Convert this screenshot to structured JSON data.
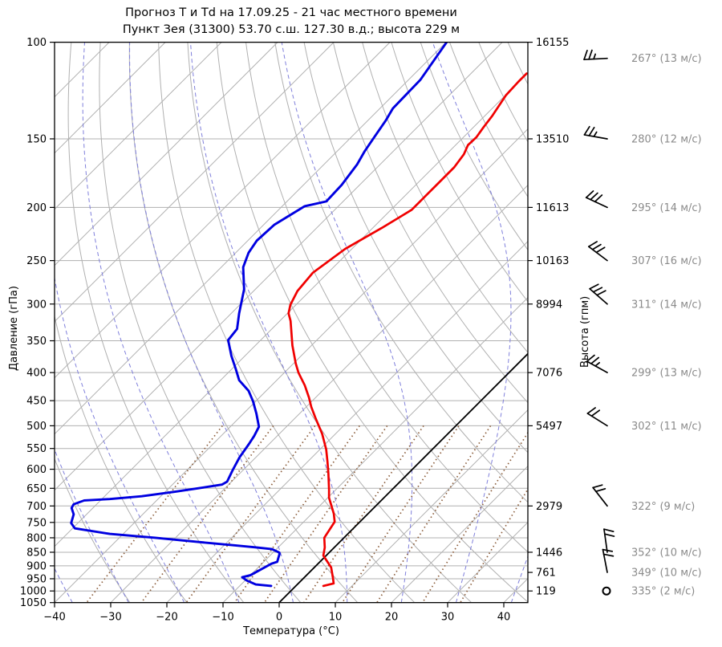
{
  "title": {
    "line1": "Прогноз Т и Td на 17.09.25 - 21 час местного времени",
    "line2": "Пункт Зея (31300) 53.70 с.ш. 127.30 в.д.; высота 229 м"
  },
  "chart_data": {
    "type": "skewt",
    "xlabel": "Температура (°C)",
    "ylabel_left": "Давление (гПа)",
    "ylabel_right": "Высота (гпм)",
    "xlim": [
      -40,
      44.3
    ],
    "plim": [
      100,
      1050
    ],
    "skew_deg": 45,
    "pressure_ticks": [
      100,
      150,
      200,
      250,
      300,
      350,
      400,
      450,
      500,
      550,
      600,
      650,
      700,
      750,
      800,
      850,
      900,
      950,
      1000,
      1050
    ],
    "temp_ticks": [
      -40,
      -30,
      -20,
      -10,
      0,
      10,
      20,
      30,
      40
    ],
    "height_labels": [
      {
        "p": 100,
        "h": "16155"
      },
      {
        "p": 150,
        "h": "13510"
      },
      {
        "p": 200,
        "h": "11613"
      },
      {
        "p": 250,
        "h": "10163"
      },
      {
        "p": 300,
        "h": "8994"
      },
      {
        "p": 400,
        "h": "7076"
      },
      {
        "p": 500,
        "h": "5497"
      },
      {
        "p": 700,
        "h": "2979"
      },
      {
        "p": 850,
        "h": "1446"
      },
      {
        "p": 925,
        "h": "761"
      },
      {
        "p": 1000,
        "h": "119"
      }
    ],
    "temperature_profile": [
      [
        114,
        -50.1
      ],
      [
        118,
        -50.1
      ],
      [
        125,
        -49.9
      ],
      [
        136,
        -48.7
      ],
      [
        143,
        -48.2
      ],
      [
        149,
        -47.7
      ],
      [
        154,
        -47.8
      ],
      [
        160,
        -46.9
      ],
      [
        169,
        -46.3
      ],
      [
        181,
        -46.3
      ],
      [
        191,
        -46.3
      ],
      [
        202,
        -46.3
      ],
      [
        218,
        -48.4
      ],
      [
        238,
        -51.2
      ],
      [
        263,
        -52.7
      ],
      [
        284,
        -52.2
      ],
      [
        301,
        -51.0
      ],
      [
        312,
        -49.8
      ],
      [
        322,
        -48.1
      ],
      [
        357,
        -43.4
      ],
      [
        385,
        -39.6
      ],
      [
        400,
        -37.5
      ],
      [
        422,
        -34.1
      ],
      [
        444,
        -31.2
      ],
      [
        462,
        -29.1
      ],
      [
        483,
        -26.5
      ],
      [
        517,
        -22.4
      ],
      [
        552,
        -18.9
      ],
      [
        581,
        -16.5
      ],
      [
        611,
        -14.2
      ],
      [
        654,
        -11.2
      ],
      [
        676,
        -9.8
      ],
      [
        723,
        -6.1
      ],
      [
        748,
        -4.5
      ],
      [
        800,
        -3.5
      ],
      [
        833,
        -1.7
      ],
      [
        862,
        -0.5
      ],
      [
        906,
        3.0
      ],
      [
        947,
        5.2
      ],
      [
        969,
        6.3
      ],
      [
        979,
        4.9
      ]
    ],
    "dewpoint_profile": [
      [
        100,
        -69.9
      ],
      [
        117,
        -67.9
      ],
      [
        132,
        -67.7
      ],
      [
        139,
        -66.8
      ],
      [
        150,
        -65.8
      ],
      [
        158,
        -65.1
      ],
      [
        167,
        -64.1
      ],
      [
        182,
        -63.2
      ],
      [
        195,
        -63.0
      ],
      [
        199,
        -66.0
      ],
      [
        215,
        -68.1
      ],
      [
        230,
        -68.4
      ],
      [
        242,
        -67.7
      ],
      [
        257,
        -66.1
      ],
      [
        282,
        -62.0
      ],
      [
        312,
        -58.6
      ],
      [
        333,
        -56.2
      ],
      [
        349,
        -55.8
      ],
      [
        373,
        -52.4
      ],
      [
        394,
        -49.3
      ],
      [
        413,
        -46.7
      ],
      [
        432,
        -43.1
      ],
      [
        451,
        -40.5
      ],
      [
        475,
        -37.7
      ],
      [
        502,
        -34.9
      ],
      [
        522,
        -34.1
      ],
      [
        540,
        -33.6
      ],
      [
        571,
        -32.9
      ],
      [
        601,
        -31.9
      ],
      [
        632,
        -30.8
      ],
      [
        640,
        -31.2
      ],
      [
        650,
        -34.8
      ],
      [
        660,
        -38.5
      ],
      [
        672,
        -43.4
      ],
      [
        680,
        -48.6
      ],
      [
        684,
        -52.9
      ],
      [
        695,
        -54.1
      ],
      [
        706,
        -53.8
      ],
      [
        725,
        -52.3
      ],
      [
        752,
        -51.2
      ],
      [
        769,
        -49.6
      ],
      [
        787,
        -42.4
      ],
      [
        800,
        -33.6
      ],
      [
        814,
        -25.3
      ],
      [
        826,
        -18.0
      ],
      [
        833,
        -13.9
      ],
      [
        839,
        -10.8
      ],
      [
        851,
        -8.9
      ],
      [
        856,
        -8.6
      ],
      [
        885,
        -7.6
      ],
      [
        892,
        -8.3
      ],
      [
        936,
        -10.0
      ],
      [
        944,
        -11.1
      ],
      [
        957,
        -9.7
      ],
      [
        973,
        -7.4
      ],
      [
        979,
        -4.4
      ]
    ],
    "winds": [
      {
        "p": 107,
        "dir": 267,
        "speed": 13,
        "label": "267° (13 м/с)"
      },
      {
        "p": 150,
        "dir": 280,
        "speed": 12,
        "label": "280° (12 м/с)"
      },
      {
        "p": 200,
        "dir": 295,
        "speed": 14,
        "label": "295° (14 м/с)"
      },
      {
        "p": 250,
        "dir": 307,
        "speed": 16,
        "label": "307° (16 м/с)"
      },
      {
        "p": 300,
        "dir": 311,
        "speed": 14,
        "label": "311° (14 м/с)"
      },
      {
        "p": 400,
        "dir": 299,
        "speed": 13,
        "label": "299° (13 м/с)"
      },
      {
        "p": 500,
        "dir": 302,
        "speed": 11,
        "label": "302° (11 м/с)"
      },
      {
        "p": 700,
        "dir": 322,
        "speed": 9,
        "label": "322° (9 м/с)"
      },
      {
        "p": 850,
        "dir": 352,
        "speed": 10,
        "label": "352° (10 м/с)"
      },
      {
        "p": 925,
        "dir": 349,
        "speed": 10,
        "label": "349° (10 м/с)"
      },
      {
        "p": 1000,
        "dir": 335,
        "speed": 2,
        "label": "335° (2 м/с)"
      }
    ],
    "grid": {
      "isotherm_start": -160,
      "isotherm_end": 40,
      "isotherm_step": 10,
      "zero_isotherm": 0,
      "dry_adiabats_theta": [
        -30,
        -20,
        -10,
        0,
        10,
        20,
        30,
        40,
        50,
        60,
        70,
        80,
        90,
        100,
        110,
        120,
        130,
        140,
        150,
        160
      ],
      "moist_adiabats_thetaw": [
        -60,
        -50,
        -40,
        -30,
        -20,
        -10,
        0,
        10,
        20,
        30,
        40
      ],
      "mixing_ratios_gkg": [
        0.2,
        0.5,
        1,
        2,
        3,
        5,
        8,
        12,
        20,
        30
      ],
      "mixing_top_p": 500
    },
    "colors": {
      "temperature": "#f00000",
      "dewpoint": "#0000e0",
      "grid_gray": "#b0b0b0",
      "moist_adiabat": "#7f7fdb",
      "mixing_ratio": "#8b5d3b",
      "zero_line": "#000000",
      "wind_barb": "#000000",
      "wind_label": "#8b8b8b",
      "frame": "#000000"
    }
  }
}
